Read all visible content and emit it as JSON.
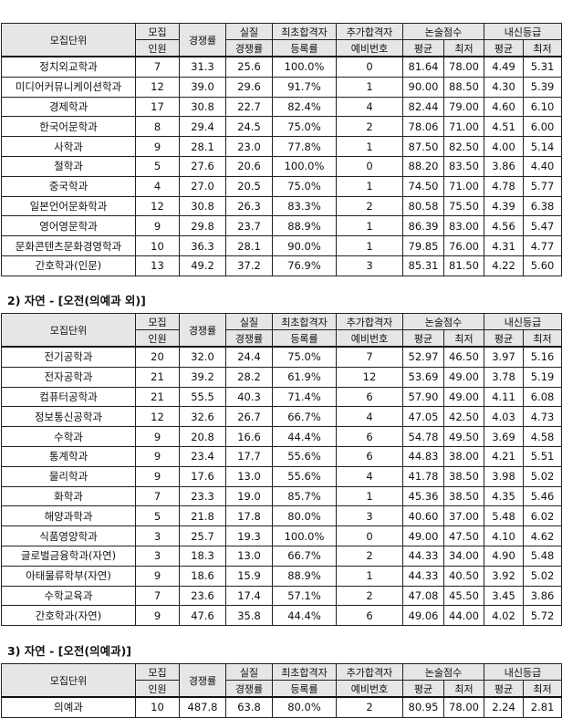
{
  "headers": {
    "unit": "모집단위",
    "quota_top": "모집",
    "quota_bottom": "인원",
    "competition": "경쟁률",
    "real_top": "실질",
    "real_bottom": "경쟁률",
    "first_top": "최초합격자",
    "first_bottom": "등록률",
    "extra_top": "추가합격자",
    "extra_bottom": "예비번호",
    "essay": "논술점수",
    "gpa": "내신등급",
    "avg": "평균",
    "min": "최저"
  },
  "sections": [
    {
      "title": "",
      "rows": [
        [
          "정치외교학과",
          "7",
          "31.3",
          "25.6",
          "100.0%",
          "0",
          "81.64",
          "78.00",
          "4.49",
          "5.31"
        ],
        [
          "미디어커뮤니케이션학과",
          "12",
          "39.0",
          "29.6",
          "91.7%",
          "1",
          "90.00",
          "88.50",
          "4.30",
          "5.39"
        ],
        [
          "경제학과",
          "17",
          "30.8",
          "22.7",
          "82.4%",
          "4",
          "82.44",
          "79.00",
          "4.60",
          "6.10"
        ],
        [
          "한국어문학과",
          "8",
          "29.4",
          "24.5",
          "75.0%",
          "2",
          "78.06",
          "71.00",
          "4.51",
          "6.00"
        ],
        [
          "사학과",
          "9",
          "28.1",
          "23.0",
          "77.8%",
          "1",
          "87.50",
          "82.50",
          "4.00",
          "5.14"
        ],
        [
          "철학과",
          "5",
          "27.6",
          "20.6",
          "100.0%",
          "0",
          "88.20",
          "83.50",
          "3.86",
          "4.40"
        ],
        [
          "중국학과",
          "4",
          "27.0",
          "20.5",
          "75.0%",
          "1",
          "74.50",
          "71.00",
          "4.78",
          "5.77"
        ],
        [
          "일본언어문화학과",
          "12",
          "30.8",
          "26.3",
          "83.3%",
          "2",
          "80.58",
          "75.50",
          "4.39",
          "6.38"
        ],
        [
          "영어영문학과",
          "9",
          "29.8",
          "23.7",
          "88.9%",
          "1",
          "86.39",
          "83.00",
          "4.56",
          "5.47"
        ],
        [
          "문화콘텐츠문화경영학과",
          "10",
          "36.3",
          "28.1",
          "90.0%",
          "1",
          "79.85",
          "76.00",
          "4.31",
          "4.77"
        ],
        [
          "간호학과(인문)",
          "13",
          "49.2",
          "37.2",
          "76.9%",
          "3",
          "85.31",
          "81.50",
          "4.22",
          "5.60"
        ]
      ]
    },
    {
      "title": "2) 자연  - [오전(의예과 외)]",
      "rows": [
        [
          "전기공학과",
          "20",
          "32.0",
          "24.4",
          "75.0%",
          "7",
          "52.97",
          "46.50",
          "3.97",
          "5.16"
        ],
        [
          "전자공학과",
          "21",
          "39.2",
          "28.2",
          "61.9%",
          "12",
          "53.69",
          "49.00",
          "3.78",
          "5.19"
        ],
        [
          "컴퓨터공학과",
          "21",
          "55.5",
          "40.3",
          "71.4%",
          "6",
          "57.90",
          "49.00",
          "4.11",
          "6.08"
        ],
        [
          "정보통신공학과",
          "12",
          "32.6",
          "26.7",
          "66.7%",
          "4",
          "47.05",
          "42.50",
          "4.03",
          "4.73"
        ],
        [
          "수학과",
          "9",
          "20.8",
          "16.6",
          "44.4%",
          "6",
          "54.78",
          "49.50",
          "3.69",
          "4.58"
        ],
        [
          "통계학과",
          "9",
          "23.4",
          "17.7",
          "55.6%",
          "6",
          "44.83",
          "38.00",
          "4.21",
          "5.51"
        ],
        [
          "물리학과",
          "9",
          "17.6",
          "13.0",
          "55.6%",
          "4",
          "41.78",
          "38.50",
          "3.98",
          "5.02"
        ],
        [
          "화학과",
          "7",
          "23.3",
          "19.0",
          "85.7%",
          "1",
          "45.36",
          "38.50",
          "4.35",
          "5.46"
        ],
        [
          "해양과학과",
          "5",
          "21.8",
          "17.8",
          "80.0%",
          "3",
          "40.60",
          "37.00",
          "5.48",
          "6.02"
        ],
        [
          "식품영양학과",
          "3",
          "25.7",
          "19.3",
          "100.0%",
          "0",
          "49.00",
          "47.50",
          "4.10",
          "4.62"
        ],
        [
          "글로벌금융학과(자연)",
          "3",
          "18.3",
          "13.0",
          "66.7%",
          "2",
          "44.33",
          "34.00",
          "4.90",
          "5.48"
        ],
        [
          "아태물류학부(자연)",
          "9",
          "18.6",
          "15.9",
          "88.9%",
          "1",
          "44.33",
          "40.50",
          "3.92",
          "5.02"
        ],
        [
          "수학교육과",
          "7",
          "23.6",
          "17.4",
          "57.1%",
          "2",
          "47.08",
          "45.50",
          "3.45",
          "3.86"
        ],
        [
          "간호학과(자연)",
          "9",
          "47.6",
          "35.8",
          "44.4%",
          "6",
          "49.06",
          "44.00",
          "4.02",
          "5.72"
        ]
      ]
    },
    {
      "title": "3) 자연  - [오전(의예과)]",
      "rows": [
        [
          "의예과",
          "10",
          "487.8",
          "63.8",
          "80.0%",
          "2",
          "80.95",
          "78.00",
          "2.24",
          "2.81"
        ]
      ]
    }
  ]
}
